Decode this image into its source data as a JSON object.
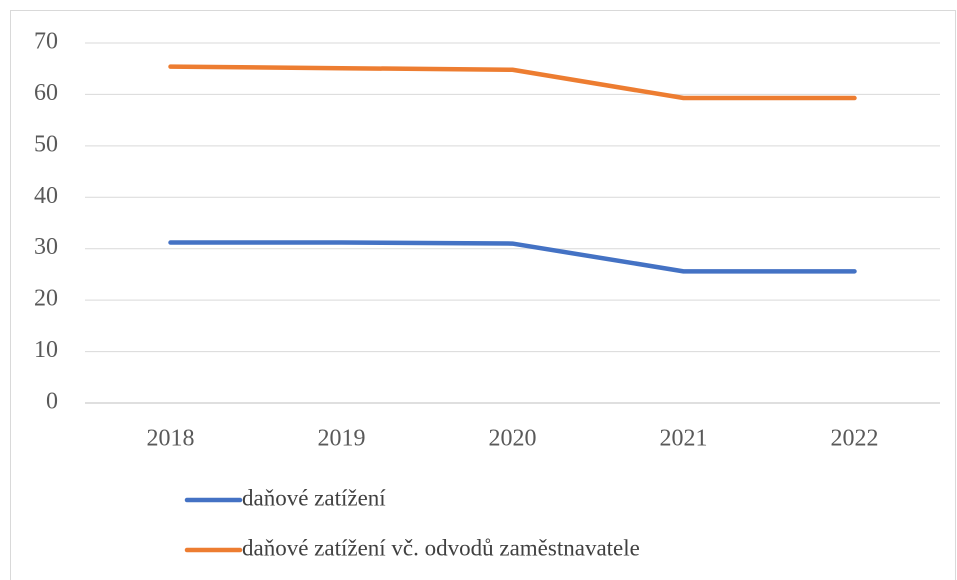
{
  "chart_data": {
    "type": "line",
    "categories": [
      "2018",
      "2019",
      "2020",
      "2021",
      "2022"
    ],
    "series": [
      {
        "name": "daňové zatížení",
        "color": "#4472c4",
        "values": [
          31.2,
          31.2,
          31.0,
          25.6,
          25.6
        ]
      },
      {
        "name": "daňové zatížení vč. odvodů zaměstnavatele",
        "color": "#ed7d31",
        "values": [
          65.4,
          65.1,
          64.8,
          59.3,
          59.3
        ]
      }
    ],
    "ylim": [
      0,
      70
    ],
    "yticks": [
      0,
      10,
      20,
      30,
      40,
      50,
      60,
      70
    ],
    "grid": true,
    "legend": "bottom"
  }
}
